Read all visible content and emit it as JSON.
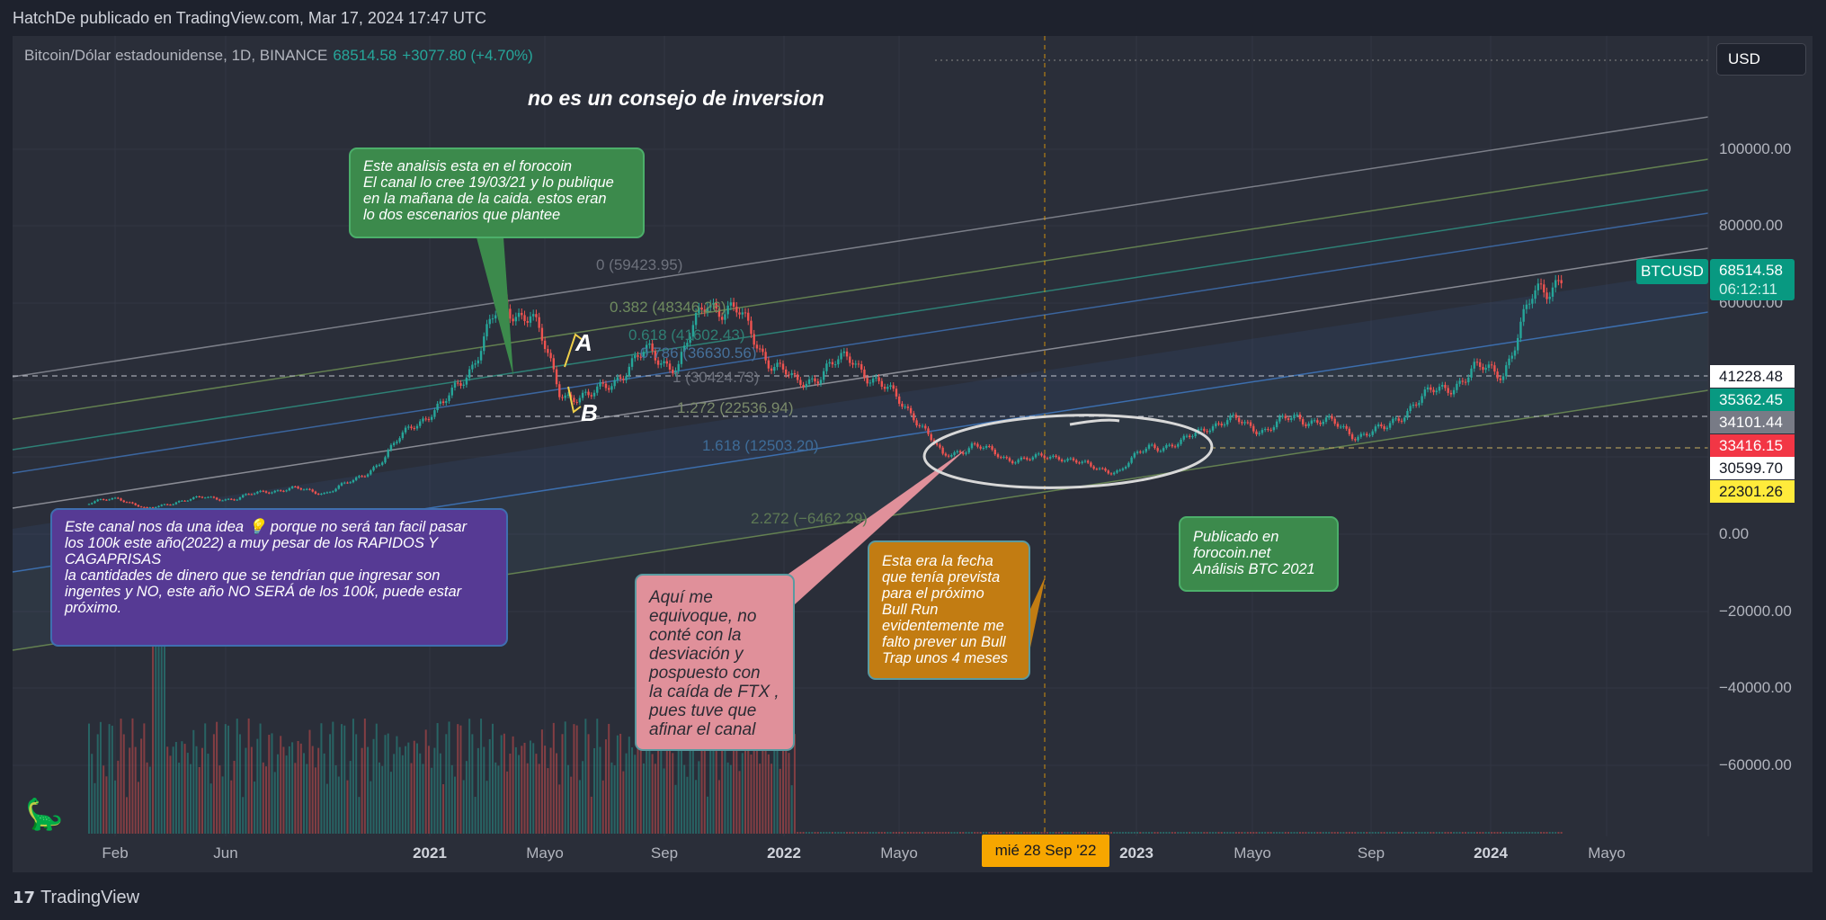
{
  "header": {
    "publisher_line": "HatchDe publicado en TradingView.com, Mar 17, 2024 17:47 UTC"
  },
  "legend": {
    "symbol": "Bitcoin/Dólar estadounidense, 1D, BINANCE",
    "price": "68514.58",
    "change": "+3077.80 (+4.70%)"
  },
  "currency_button": "USD",
  "disclaimer": "no es un consejo de inversion",
  "notes": {
    "green_top": "Este analisis esta en el forocoin\nEl canal lo cree 19/03/21 y lo publique\nen la mañana de la caida. estos eran\nlo dos escenarios que plantee",
    "purple": "Este canal nos da una idea 💡 porque no será tan facil pasar\nlos 100k este año(2022) a muy pesar de los RAPIDOS  Y\nCAGAPRISAS\nla cantidades de dinero que se tendrían que ingresar  son\ningentes y NO, este año NO SERÁ de los 100k, puede estar\npróximo.",
    "pink": "Aquí  me\nequivoque,  no\nconté con la\ndesviación  y\npospuesto  con\nla caída de FTX ,\npues tuve que\nafinar el canal",
    "orange": "Esta era la fecha\nque  tenía prevista\npara el próximo\nBull Run\nevidentemente me\nfalto prever un Bull\nTrap unos 4 meses",
    "green_small": "Publicado en\nforocoin.net\nAnálisis BTC  2021"
  },
  "wave_labels": {
    "a": "A",
    "b": "B"
  },
  "fib_levels": [
    "0 (59423.95)",
    "0.382 (48346.26)",
    "0.618 (41602.43)",
    "0.786 (36630.56)",
    "1 (30424.73)",
    "1.272 (22536.94)",
    "1.618 (12503.20)",
    "2.272 (−6462.29)"
  ],
  "price_axis": [
    "100000.00",
    "80000.00",
    "60000.00",
    "0.00",
    "−20000.00",
    "−40000.00",
    "−60000.00"
  ],
  "symbol_tag": "BTCUSD",
  "last_price": "68514.58",
  "countdown": "06:12:11",
  "price_labels": [
    {
      "value": "41228.48",
      "bg": "#ffffff",
      "fg": "#131722"
    },
    {
      "value": "35362.45",
      "bg": "#089981",
      "fg": "#ffffff"
    },
    {
      "value": "34101.44",
      "bg": "#787b86",
      "fg": "#ffffff"
    },
    {
      "value": "33416.15",
      "bg": "#f23645",
      "fg": "#ffffff"
    },
    {
      "value": "30599.70",
      "bg": "#ffffff",
      "fg": "#131722"
    },
    {
      "value": "22301.26",
      "bg": "#ffeb3b",
      "fg": "#131722"
    }
  ],
  "time_axis": [
    "Feb",
    "Jun",
    "2021",
    "Mayo",
    "Sep",
    "2022",
    "Mayo",
    "2023",
    "Mayo",
    "Sep",
    "2024",
    "Mayo"
  ],
  "crosshair_date": "mié 28 Sep '22",
  "footer": {
    "brand": "TradingView"
  },
  "colors": {
    "up": "#26a69a",
    "down": "#ef5350",
    "accent": "#f7a600"
  },
  "chart_data": {
    "type": "candlestick",
    "title": "Bitcoin/Dólar estadounidense, 1D, BINANCE",
    "ylim": [
      -70000,
      115000
    ],
    "grid": true,
    "monthly_close_approx": {
      "x": [
        "2020-01",
        "2020-02",
        "2020-03",
        "2020-04",
        "2020-05",
        "2020-06",
        "2020-07",
        "2020-08",
        "2020-09",
        "2020-10",
        "2020-11",
        "2020-12",
        "2021-01",
        "2021-02",
        "2021-03",
        "2021-04",
        "2021-05",
        "2021-06",
        "2021-07",
        "2021-08",
        "2021-09",
        "2021-10",
        "2021-11",
        "2021-12",
        "2022-01",
        "2022-02",
        "2022-03",
        "2022-04",
        "2022-05",
        "2022-06",
        "2022-07",
        "2022-08",
        "2022-09",
        "2022-10",
        "2022-11",
        "2022-12",
        "2023-01",
        "2023-02",
        "2023-03",
        "2023-04",
        "2023-05",
        "2023-06",
        "2023-07",
        "2023-08",
        "2023-09",
        "2023-10",
        "2023-11",
        "2023-12",
        "2024-01",
        "2024-02",
        "2024-03-17"
      ],
      "y": [
        8000,
        9500,
        6400,
        8600,
        9500,
        9100,
        11300,
        11700,
        10800,
        13800,
        19700,
        29000,
        33100,
        45000,
        58800,
        57700,
        37300,
        35000,
        41500,
        47100,
        43800,
        61300,
        57000,
        46300,
        38500,
        43200,
        45500,
        37700,
        31800,
        19900,
        23300,
        20000,
        19400,
        20500,
        17200,
        16500,
        23100,
        23100,
        28500,
        29200,
        27200,
        30500,
        29200,
        26000,
        27000,
        34500,
        37700,
        42300,
        42600,
        61200,
        68514.58
      ]
    }
  }
}
